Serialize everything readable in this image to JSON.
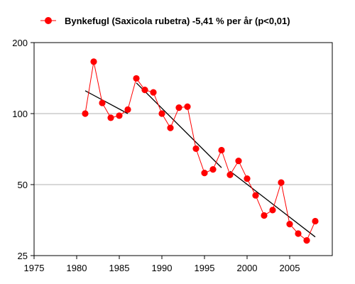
{
  "chart_data": {
    "type": "line",
    "title": "",
    "xlabel": "",
    "ylabel": "",
    "legend": {
      "position": "top",
      "entries": [
        "Bynkefugl (Saxicola rubetra) -5,41 % per år (p<0,01)"
      ]
    },
    "y_scale": "log",
    "xlim": [
      1975,
      2010
    ],
    "ylim": [
      25,
      200
    ],
    "x_ticks": [
      1975,
      1980,
      1985,
      1990,
      1995,
      2000,
      2005
    ],
    "x_tick_labels": [
      "1975",
      "1980",
      "1985",
      "1990",
      "1995",
      "2000",
      "2005"
    ],
    "y_ticks": [
      25,
      50,
      100,
      200
    ],
    "y_tick_labels": [
      "25",
      "50",
      "100",
      "200"
    ],
    "grid": {
      "horizontal": true,
      "vertical": false
    },
    "series": [
      {
        "name": "Bynkefugl (Saxicola rubetra) -5,41 % per år (p<0,01)",
        "color": "#ff0000",
        "x": [
          1981,
          1982,
          1983,
          1984,
          1985,
          1986,
          1987,
          1988,
          1989,
          1990,
          1991,
          1992,
          1993,
          1994,
          1995,
          1996,
          1997,
          1998,
          1999,
          2000,
          2001,
          2002,
          2003,
          2004,
          2005,
          2006,
          2007,
          2008
        ],
        "y": [
          100,
          166,
          111,
          96,
          98,
          104,
          141,
          126,
          123,
          100,
          87,
          106,
          107,
          71,
          56,
          58,
          70,
          55,
          63,
          53,
          45,
          37,
          39,
          51,
          34,
          31,
          29,
          35
        ]
      }
    ],
    "trend_lines": [
      {
        "color": "#000000",
        "x": [
          1981,
          1986
        ],
        "y": [
          125,
          100
        ]
      },
      {
        "color": "#000000",
        "x": [
          1987,
          1997
        ],
        "y": [
          135,
          59
        ]
      },
      {
        "color": "#000000",
        "x": [
          1998,
          2008
        ],
        "y": [
          57,
          30
        ]
      }
    ]
  }
}
